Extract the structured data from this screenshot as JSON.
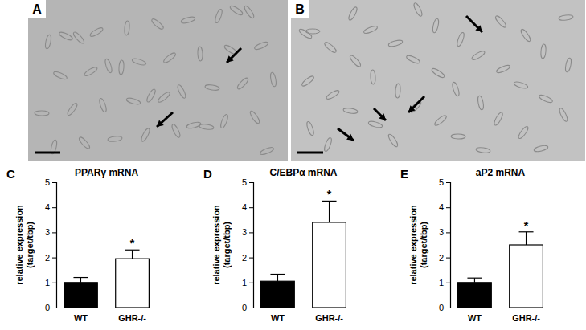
{
  "images": [
    {
      "label": "A"
    },
    {
      "label": "B"
    }
  ],
  "chart_data": [
    {
      "type": "bar",
      "panel_label": "C",
      "title": "PPARγ mRNA",
      "ylabel": [
        "relative expression",
        "(target/tbp)"
      ],
      "categories": [
        "WT",
        "GHR-/-"
      ],
      "values": [
        1.0,
        1.95
      ],
      "errors": [
        0.2,
        0.35
      ],
      "colors": [
        "#000000",
        "#ffffff"
      ],
      "ylim": [
        0,
        5
      ],
      "yticks": [
        0,
        1,
        2,
        3,
        4,
        5
      ],
      "annotations": [
        {
          "text": "*",
          "x": "GHR-/-"
        }
      ]
    },
    {
      "type": "bar",
      "panel_label": "D",
      "title": "C/EBPα mRNA",
      "ylabel": [
        "relative expression",
        "(target/tbp)"
      ],
      "categories": [
        "WT",
        "GHR-/-"
      ],
      "values": [
        1.05,
        3.4
      ],
      "errors": [
        0.28,
        0.85
      ],
      "colors": [
        "#000000",
        "#ffffff"
      ],
      "ylim": [
        0,
        5
      ],
      "yticks": [
        0,
        1,
        2,
        3,
        4,
        5
      ],
      "annotations": [
        {
          "text": "*",
          "x": "GHR-/-"
        }
      ]
    },
    {
      "type": "bar",
      "panel_label": "E",
      "title": "aP2 mRNA",
      "ylabel": [
        "relative expression",
        "(target/tbp)"
      ],
      "categories": [
        "WT",
        "GHR-/-"
      ],
      "values": [
        1.0,
        2.5
      ],
      "errors": [
        0.18,
        0.52
      ],
      "colors": [
        "#000000",
        "#ffffff"
      ],
      "ylim": [
        0,
        5
      ],
      "yticks": [
        0,
        1,
        2,
        3,
        4,
        5
      ],
      "annotations": [
        {
          "text": "*",
          "x": "GHR-/-"
        }
      ]
    }
  ]
}
